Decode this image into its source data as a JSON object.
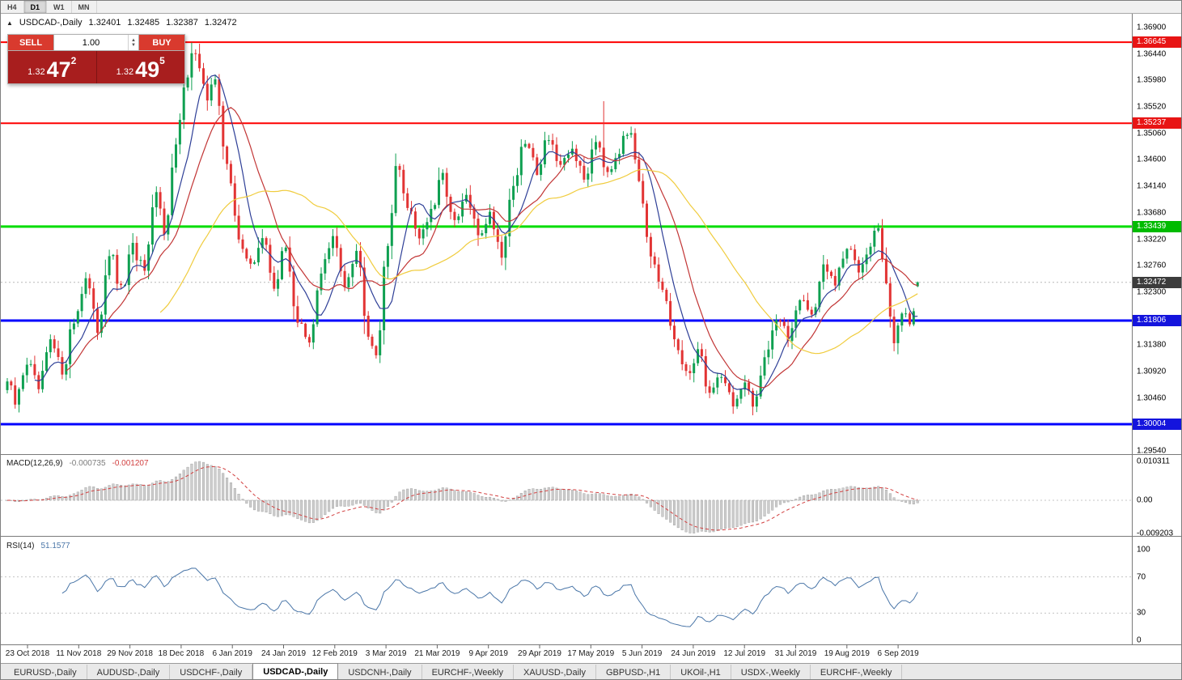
{
  "toolbar": {
    "timeframes": [
      "H4",
      "D1",
      "W1",
      "MN"
    ],
    "active": "D1"
  },
  "chart_header": {
    "collapse_icon": "▲",
    "symbol": "USDCAD-,Daily",
    "open": "1.32401",
    "high": "1.32485",
    "low": "1.32387",
    "close": "1.32472"
  },
  "trade_widget": {
    "sell_label": "SELL",
    "buy_label": "BUY",
    "volume": "1.00",
    "bid": {
      "prefix": "1.32",
      "big": "47",
      "sup": "2"
    },
    "ask": {
      "prefix": "1.32",
      "big": "49",
      "sup": "5"
    }
  },
  "tabs": {
    "items": [
      "EURUSD-,Daily",
      "AUDUSD-,Daily",
      "USDCHF-,Daily",
      "USDCAD-,Daily",
      "USDCNH-,Daily",
      "EURCHF-,Weekly",
      "XAUUSD-,Daily",
      "GBPUSD-,H1",
      "UKOil-,H1",
      "USDX-,Weekly",
      "EURCHF-,Weekly"
    ],
    "active_index": 3
  },
  "chart_data": {
    "type": "candlestick",
    "symbol": "USDCAD",
    "timeframe": "Daily",
    "current_ohlc": {
      "open": 1.32401,
      "high": 1.32485,
      "low": 1.32387,
      "close": 1.32472
    },
    "price_axis": {
      "min": 1.2954,
      "max": 1.369,
      "step": 0.0046,
      "labels": [
        "1.36900",
        "1.36440",
        "1.35980",
        "1.35520",
        "1.35060",
        "1.34600",
        "1.34140",
        "1.33680",
        "1.33220",
        "1.32760",
        "1.32300",
        "1.31840",
        "1.31380",
        "1.30920",
        "1.30460",
        "1.30000",
        "1.29540"
      ]
    },
    "current_price_badge": {
      "price": 1.32472,
      "label": "1.32472",
      "color": "#3c3c3c"
    },
    "hlines": [
      {
        "price": 1.36645,
        "label": "1.36645",
        "color": "#fe0000",
        "badge": "#e81414",
        "width": 2
      },
      {
        "price": 1.35237,
        "label": "1.35237",
        "color": "#fe0000",
        "badge": "#e81414",
        "width": 2
      },
      {
        "price": 1.33439,
        "label": "1.33439",
        "color": "#00dd00",
        "badge": "#00bb00",
        "width": 3
      },
      {
        "price": 1.31806,
        "label": "1.31806",
        "color": "#0000fe",
        "badge": "#1414dd",
        "width": 3
      },
      {
        "price": 1.30004,
        "label": "1.30004",
        "color": "#0000fe",
        "badge": "#1414dd",
        "width": 3
      }
    ],
    "date_labels": [
      "23 Oct 2018",
      "11 Nov 2018",
      "29 Nov 2018",
      "18 Dec 2018",
      "6 Jan 2019",
      "24 Jan 2019",
      "12 Feb 2019",
      "3 Mar 2019",
      "21 Mar 2019",
      "9 Apr 2019",
      "29 Apr 2019",
      "17 May 2019",
      "5 Jun 2019",
      "24 Jun 2019",
      "12 Jul 2019",
      "31 Jul 2019",
      "19 Aug 2019",
      "6 Sep 2019"
    ],
    "num_candles": 233,
    "price_keyframes": [
      [
        0,
        1.3075
      ],
      [
        2,
        1.3035
      ],
      [
        5,
        1.311
      ],
      [
        8,
        1.306
      ],
      [
        11,
        1.314
      ],
      [
        14,
        1.3095
      ],
      [
        17,
        1.318
      ],
      [
        20,
        1.3255
      ],
      [
        23,
        1.3165
      ],
      [
        26,
        1.33
      ],
      [
        29,
        1.323
      ],
      [
        32,
        1.3305
      ],
      [
        35,
        1.3265
      ],
      [
        38,
        1.34
      ],
      [
        40,
        1.334
      ],
      [
        43,
        1.348
      ],
      [
        45,
        1.3575
      ],
      [
        47,
        1.3655
      ],
      [
        49,
        1.3625
      ],
      [
        51,
        1.3555
      ],
      [
        53,
        1.3605
      ],
      [
        56,
        1.3445
      ],
      [
        59,
        1.333
      ],
      [
        62,
        1.327
      ],
      [
        65,
        1.3325
      ],
      [
        68,
        1.3245
      ],
      [
        71,
        1.3305
      ],
      [
        74,
        1.318
      ],
      [
        77,
        1.3135
      ],
      [
        80,
        1.327
      ],
      [
        83,
        1.332
      ],
      [
        86,
        1.325
      ],
      [
        89,
        1.3305
      ],
      [
        92,
        1.3165
      ],
      [
        94,
        1.3125
      ],
      [
        97,
        1.331
      ],
      [
        99,
        1.345
      ],
      [
        102,
        1.3385
      ],
      [
        105,
        1.333
      ],
      [
        108,
        1.3365
      ],
      [
        111,
        1.343
      ],
      [
        114,
        1.3345
      ],
      [
        117,
        1.3395
      ],
      [
        120,
        1.333
      ],
      [
        123,
        1.3365
      ],
      [
        126,
        1.33
      ],
      [
        129,
        1.342
      ],
      [
        132,
        1.349
      ],
      [
        135,
        1.3445
      ],
      [
        138,
        1.3505
      ],
      [
        141,
        1.344
      ],
      [
        144,
        1.348
      ],
      [
        147,
        1.3425
      ],
      [
        150,
        1.35
      ],
      [
        153,
        1.3445
      ],
      [
        156,
        1.348
      ],
      [
        159,
        1.3515
      ],
      [
        161,
        1.343
      ],
      [
        164,
        1.328
      ],
      [
        167,
        1.323
      ],
      [
        170,
        1.315
      ],
      [
        173,
        1.308
      ],
      [
        176,
        1.313
      ],
      [
        179,
        1.3055
      ],
      [
        182,
        1.309
      ],
      [
        185,
        1.3038
      ],
      [
        188,
        1.3065
      ],
      [
        190,
        1.3028
      ],
      [
        193,
        1.312
      ],
      [
        196,
        1.3185
      ],
      [
        199,
        1.315
      ],
      [
        202,
        1.3225
      ],
      [
        205,
        1.319
      ],
      [
        208,
        1.327
      ],
      [
        211,
        1.3245
      ],
      [
        214,
        1.3305
      ],
      [
        217,
        1.3275
      ],
      [
        220,
        1.332
      ],
      [
        222,
        1.3342
      ],
      [
        224,
        1.3235
      ],
      [
        226,
        1.3148
      ],
      [
        228,
        1.3195
      ],
      [
        230,
        1.3165
      ],
      [
        232,
        1.3247
      ]
    ],
    "spikes": [
      {
        "day": 47,
        "high": 1.3664
      },
      {
        "day": 48,
        "high": 1.3652
      },
      {
        "day": 152,
        "high": 1.3562
      },
      {
        "day": 99,
        "high": 1.3465
      },
      {
        "day": 190,
        "low": 1.3016
      },
      {
        "day": 227,
        "low": 1.3122
      }
    ],
    "moving_averages": [
      {
        "name": "fast",
        "period": 8,
        "color": "#2e3f97"
      },
      {
        "name": "mid",
        "period": 16,
        "color": "#c23636"
      },
      {
        "name": "slow",
        "period": 40,
        "color": "#f0cc3e"
      }
    ],
    "colors": {
      "bull": "#0fa051",
      "bear": "#e23434",
      "background": "#ffffff"
    },
    "macd": {
      "label": "MACD(12,26,9)",
      "value_main": "-0.000735",
      "value_signal": "-0.001207",
      "params": [
        12,
        26,
        9
      ],
      "axis_labels": [
        "0.010311",
        "0.00",
        "-0.009203"
      ],
      "histogram_color": "#cdcdcd",
      "signal_color": "#d24040"
    },
    "rsi": {
      "label": "RSI(14)",
      "value": "51.1577",
      "period": 14,
      "axis_labels": [
        "100",
        "70",
        "30",
        "0"
      ],
      "levels": [
        70,
        30
      ],
      "line_color": "#4a76a8"
    }
  }
}
